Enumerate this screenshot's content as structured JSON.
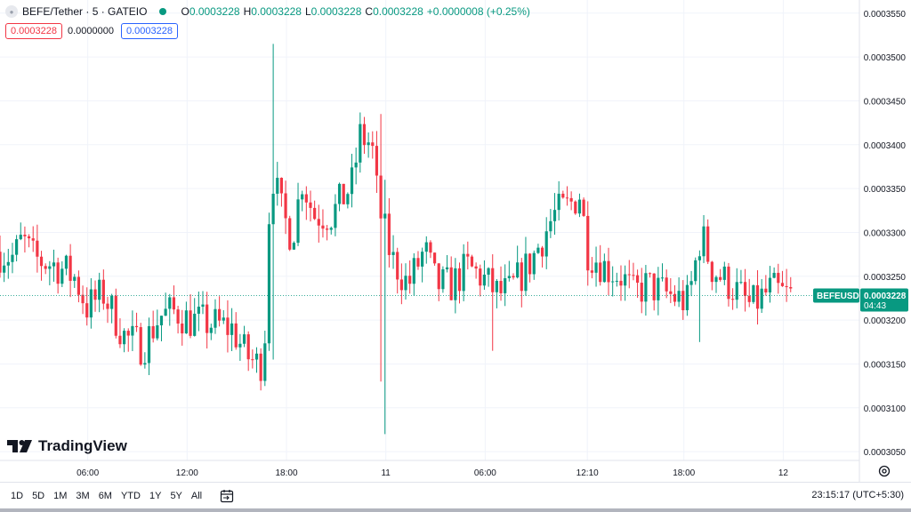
{
  "header": {
    "symbol": "BEFE/Tether · 5 · GATEIO",
    "ohlc": [
      {
        "key": "O",
        "value": "0.0003228"
      },
      {
        "key": "H",
        "value": "0.0003228"
      },
      {
        "key": "L",
        "value": "0.0003228"
      },
      {
        "key": "C",
        "value": "0.0003228"
      }
    ],
    "change": "+0.0000008 (+0.25%)",
    "sell_price": "0.0003228",
    "spread": "0.0000000",
    "buy_price": "0.0003228"
  },
  "brand": "TradingView",
  "range_buttons": [
    "1D",
    "5D",
    "1M",
    "3M",
    "6M",
    "YTD",
    "1Y",
    "5Y",
    "All"
  ],
  "clock": "23:15:17 (UTC+5:30)",
  "colors": {
    "up": "#089981",
    "down": "#f23645",
    "accent": "#2962ff",
    "last_price_bg": "#089981"
  },
  "chart_data": {
    "type": "candlestick",
    "ylim": [
      0.000304,
      0.0003565
    ],
    "y_ticks": [
      "0.0003550",
      "0.0003500",
      "0.0003450",
      "0.0003400",
      "0.0003350",
      "0.0003300",
      "0.0003250",
      "0.0003200",
      "0.0003150",
      "0.0003100",
      "0.0003050"
    ],
    "x_ticks": [
      "06:00",
      "12:00",
      "18:00",
      "11",
      "06:00",
      "12:10",
      "18:00",
      "12"
    ],
    "x_tick_hours": [
      6,
      12,
      18,
      24,
      30,
      36.17,
      42,
      48
    ],
    "x_range_hours": [
      0.7,
      52.6
    ],
    "grid": true,
    "last_price": {
      "label": "BEFEUSDT",
      "value": "0.0003228",
      "countdown": "04:43",
      "price": 0.0003228
    },
    "anchors": [
      {
        "h": 0.7,
        "p": 0.0003278
      },
      {
        "h": 1.8,
        "p": 0.0003272
      },
      {
        "h": 2.3,
        "p": 0.0003292
      },
      {
        "h": 3.0,
        "p": 0.000327
      },
      {
        "h": 4.4,
        "p": 0.0003262
      },
      {
        "h": 5.5,
        "p": 0.0003248
      },
      {
        "h": 6.2,
        "p": 0.0003215
      },
      {
        "h": 7.2,
        "p": 0.000323
      },
      {
        "h": 8.5,
        "p": 0.000318
      },
      {
        "h": 9.6,
        "p": 0.000317
      },
      {
        "h": 10.6,
        "p": 0.0003205
      },
      {
        "h": 11.6,
        "p": 0.000321
      },
      {
        "h": 12.3,
        "p": 0.00032
      },
      {
        "h": 14.0,
        "p": 0.0003195
      },
      {
        "h": 15.0,
        "p": 0.000319
      },
      {
        "h": 15.8,
        "p": 0.000316
      },
      {
        "h": 16.6,
        "p": 0.0003148
      },
      {
        "h": 16.9,
        "p": 0.000316
      },
      {
        "h": 17.3,
        "p": 0.0003375
      },
      {
        "h": 18.0,
        "p": 0.000332
      },
      {
        "h": 18.6,
        "p": 0.0003295
      },
      {
        "h": 19.2,
        "p": 0.000336
      },
      {
        "h": 19.9,
        "p": 0.000332
      },
      {
        "h": 21.0,
        "p": 0.000332
      },
      {
        "h": 22.2,
        "p": 0.0003355
      },
      {
        "h": 22.7,
        "p": 0.000341
      },
      {
        "h": 23.4,
        "p": 0.00034
      },
      {
        "h": 23.8,
        "p": 0.000333
      },
      {
        "h": 24.6,
        "p": 0.000327
      },
      {
        "h": 25.6,
        "p": 0.000324
      },
      {
        "h": 26.6,
        "p": 0.000328
      },
      {
        "h": 27.3,
        "p": 0.000324
      },
      {
        "h": 28.2,
        "p": 0.000324
      },
      {
        "h": 29.2,
        "p": 0.000326
      },
      {
        "h": 30.0,
        "p": 0.000325
      },
      {
        "h": 31.0,
        "p": 0.000323
      },
      {
        "h": 31.7,
        "p": 0.0003232
      },
      {
        "h": 33.1,
        "p": 0.000327
      },
      {
        "h": 34.4,
        "p": 0.000332
      },
      {
        "h": 35.3,
        "p": 0.000333
      },
      {
        "h": 36.0,
        "p": 0.0003345
      },
      {
        "h": 36.4,
        "p": 0.000328
      },
      {
        "h": 37.5,
        "p": 0.000326
      },
      {
        "h": 38.5,
        "p": 0.000325
      },
      {
        "h": 39.2,
        "p": 0.000323
      },
      {
        "h": 40.0,
        "p": 0.000324
      },
      {
        "h": 41.2,
        "p": 0.000323
      },
      {
        "h": 42.5,
        "p": 0.000322
      },
      {
        "h": 43.3,
        "p": 0.00033
      },
      {
        "h": 43.9,
        "p": 0.000326
      },
      {
        "h": 45.3,
        "p": 0.0003235
      },
      {
        "h": 46.3,
        "p": 0.0003215
      },
      {
        "h": 47.5,
        "p": 0.0003235
      },
      {
        "h": 48.5,
        "p": 0.0003228
      }
    ],
    "spikes": [
      {
        "h": 17.2,
        "high": 0.0003515,
        "low": 0.0003155
      },
      {
        "h": 23.6,
        "high": 0.0003435,
        "low": 0.000313
      },
      {
        "h": 24.0,
        "high": 0.000336,
        "low": 0.000307
      },
      {
        "h": 30.5,
        "high": 0.000326,
        "low": 0.0003165
      },
      {
        "h": 43.0,
        "high": 0.0003265,
        "low": 0.0003175
      }
    ]
  }
}
